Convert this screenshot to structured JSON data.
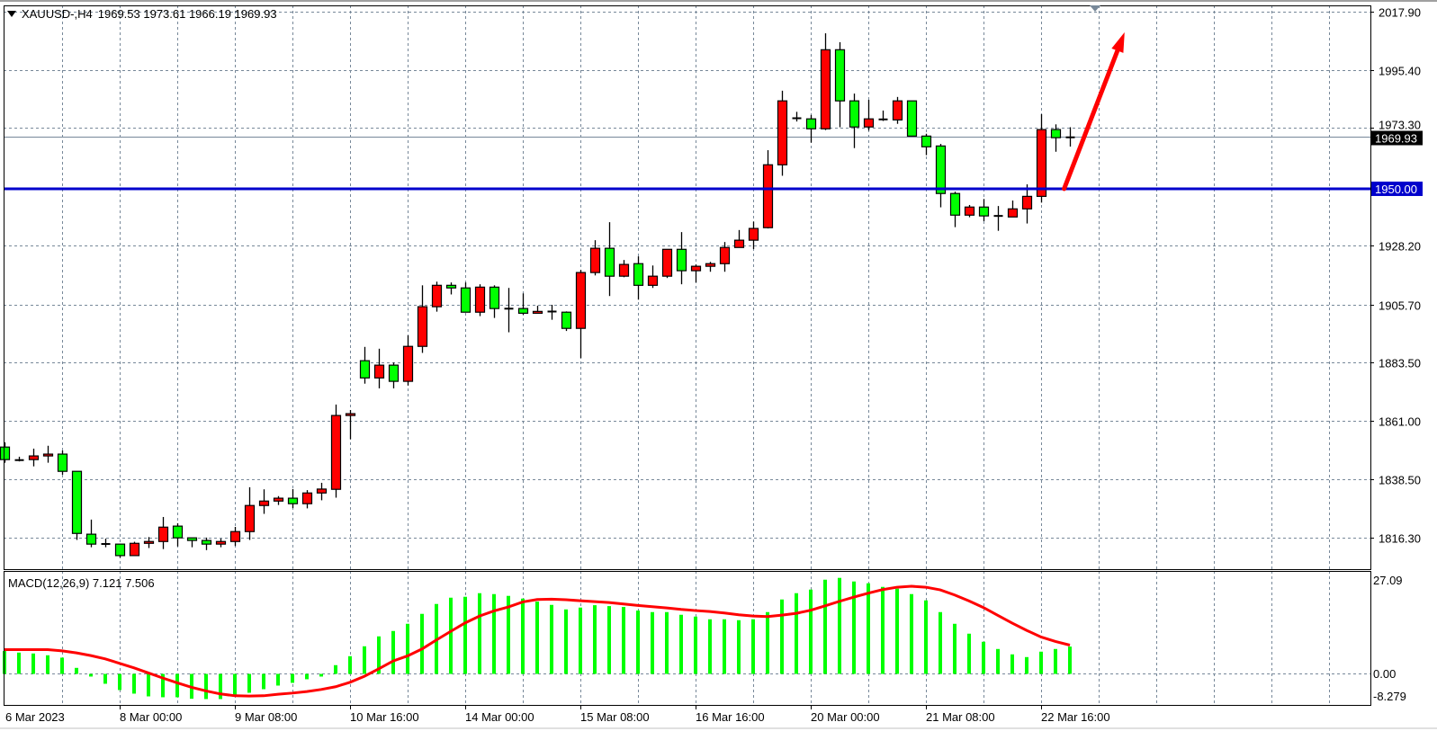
{
  "header": {
    "symbol": "XAUUSD-,H4",
    "ohlc": "1969.53 1973.61 1966.19 1969.93"
  },
  "macd_label": "MACD(12,26,9) 7.121 7.506",
  "colors": {
    "bull": "#ff0000",
    "bear": "#00ff00",
    "outline": "#000000",
    "grid": "#778899",
    "level_line": "#0000cc",
    "price_line": "#778899",
    "histogram": "#00ff00",
    "signal": "#ff0000",
    "arrow": "#ff0000"
  },
  "chart_data": [
    {
      "type": "candlestick",
      "symbol": "XAUUSD-",
      "timeframe": "H4",
      "ylim": [
        1804.2,
        2020.3
      ],
      "grid": true,
      "yticks": [
        "2017.90",
        "1995.40",
        "1973.30",
        "1928.20",
        "1905.70",
        "1883.50",
        "1861.00",
        "1838.50",
        "1816.30"
      ],
      "xticks": [
        {
          "bar": 0,
          "label": "6 Mar 2023"
        },
        {
          "bar": 8,
          "label": "8 Mar 00:00"
        },
        {
          "bar": 16,
          "label": "9 Mar 08:00"
        },
        {
          "bar": 24,
          "label": "10 Mar 16:00"
        },
        {
          "bar": 32,
          "label": "14 Mar 00:00"
        },
        {
          "bar": 40,
          "label": "15 Mar 08:00"
        },
        {
          "bar": 48,
          "label": "16 Mar 16:00"
        },
        {
          "bar": 56,
          "label": "20 Mar 00:00"
        },
        {
          "bar": 64,
          "label": "21 Mar 08:00"
        },
        {
          "bar": 72,
          "label": "22 Mar 16:00"
        }
      ],
      "current_price": {
        "value": 1969.93,
        "label": "1969.93"
      },
      "horizontal_level": {
        "value": 1950.0,
        "label": "1950.00"
      },
      "arrow": {
        "from": {
          "bar": 73.6,
          "price": 1950.0
        },
        "to": {
          "bar": 77.8,
          "price": 2010.0
        },
        "direction": "up"
      },
      "ohlc": [
        [
          1851.0,
          1852.8,
          1845.0,
          1846.2
        ],
        [
          1846.1,
          1847.3,
          1845.5,
          1845.9
        ],
        [
          1846.2,
          1850.4,
          1843.6,
          1847.6
        ],
        [
          1847.6,
          1851.5,
          1845.0,
          1848.3
        ],
        [
          1848.3,
          1849.7,
          1840.4,
          1841.7
        ],
        [
          1841.7,
          1841.7,
          1815.4,
          1817.9
        ],
        [
          1817.6,
          1823.2,
          1812.6,
          1813.8
        ],
        [
          1813.9,
          1815.9,
          1812.6,
          1813.8
        ],
        [
          1813.8,
          1813.8,
          1808.6,
          1809.4
        ],
        [
          1809.4,
          1814.7,
          1809.4,
          1814.1
        ],
        [
          1814.1,
          1816.5,
          1812.3,
          1814.8
        ],
        [
          1814.8,
          1824.2,
          1811.9,
          1820.3
        ],
        [
          1820.7,
          1821.8,
          1812.9,
          1816.2
        ],
        [
          1816.2,
          1816.2,
          1812.6,
          1815.2
        ],
        [
          1815.2,
          1816.3,
          1811.5,
          1813.8
        ],
        [
          1813.8,
          1815.9,
          1812.6,
          1814.8
        ],
        [
          1814.8,
          1820.4,
          1813.1,
          1818.6
        ],
        [
          1818.6,
          1835.6,
          1815.4,
          1828.6
        ],
        [
          1828.6,
          1834.8,
          1825.4,
          1830.3
        ],
        [
          1830.3,
          1832.2,
          1828.8,
          1831.4
        ],
        [
          1831.4,
          1834.9,
          1827.6,
          1829.3
        ],
        [
          1829.3,
          1834.5,
          1827.5,
          1833.4
        ],
        [
          1833.4,
          1837.3,
          1830.6,
          1834.9
        ],
        [
          1834.8,
          1867.3,
          1831.6,
          1863.1
        ],
        [
          1863.1,
          1865.2,
          1854.0,
          1863.8
        ],
        [
          1884.1,
          1889.4,
          1875.3,
          1877.5
        ],
        [
          1877.5,
          1888.7,
          1873.5,
          1882.4
        ],
        [
          1882.4,
          1883.4,
          1873.5,
          1876.2
        ],
        [
          1876.2,
          1893.8,
          1874.6,
          1889.6
        ],
        [
          1889.6,
          1913.0,
          1887.1,
          1904.8
        ],
        [
          1904.8,
          1914.4,
          1902.9,
          1913.0
        ],
        [
          1913.0,
          1914.1,
          1909.5,
          1912.0
        ],
        [
          1912.0,
          1914.1,
          1902.7,
          1902.7
        ],
        [
          1902.7,
          1913.4,
          1901.2,
          1912.3
        ],
        [
          1912.3,
          1913.0,
          1900.5,
          1904.1
        ],
        [
          1904.1,
          1912.0,
          1895.0,
          1904.0
        ],
        [
          1904.1,
          1909.9,
          1901.7,
          1902.3
        ],
        [
          1902.3,
          1905.2,
          1902.3,
          1903.0
        ],
        [
          1903.0,
          1905.5,
          1899.8,
          1902.9
        ],
        [
          1902.7,
          1903.0,
          1895.5,
          1896.5
        ],
        [
          1896.5,
          1918.9,
          1885.1,
          1917.9
        ],
        [
          1917.9,
          1930.3,
          1916.8,
          1927.2
        ],
        [
          1927.2,
          1937.2,
          1908.9,
          1916.5
        ],
        [
          1916.5,
          1922.7,
          1916.1,
          1921.0
        ],
        [
          1921.3,
          1924.1,
          1907.5,
          1913.0
        ],
        [
          1913.0,
          1920.6,
          1912.0,
          1916.5
        ],
        [
          1916.5,
          1926.8,
          1915.8,
          1926.8
        ],
        [
          1926.8,
          1933.4,
          1913.4,
          1918.6
        ],
        [
          1918.6,
          1921.0,
          1914.1,
          1920.3
        ],
        [
          1920.3,
          1922.0,
          1918.2,
          1921.3
        ],
        [
          1921.3,
          1929.6,
          1918.2,
          1927.5
        ],
        [
          1927.5,
          1934.2,
          1927.5,
          1930.3
        ],
        [
          1930.3,
          1937.4,
          1926.9,
          1934.8
        ],
        [
          1935.1,
          1964.8,
          1934.8,
          1959.2
        ],
        [
          1959.2,
          1987.6,
          1955.0,
          1983.7
        ],
        [
          1977.1,
          1979.5,
          1975.8,
          1977.0
        ],
        [
          1976.8,
          1978.3,
          1967.7,
          1973.0
        ],
        [
          1973.0,
          2009.6,
          1972.5,
          2003.3
        ],
        [
          2003.3,
          2006.2,
          1973.6,
          1983.7
        ],
        [
          1983.7,
          1986.5,
          1965.6,
          1973.7
        ],
        [
          1973.7,
          1984.1,
          1972.3,
          1976.8
        ],
        [
          1976.6,
          1980.0,
          1976.0,
          1976.6
        ],
        [
          1976.4,
          1985.2,
          1974.9,
          1983.7
        ],
        [
          1983.7,
          1983.7,
          1970.2,
          1970.2
        ],
        [
          1970.2,
          1971.1,
          1962.9,
          1966.1
        ],
        [
          1966.4,
          1967.2,
          1942.9,
          1948.2
        ],
        [
          1948.2,
          1948.9,
          1935.3,
          1939.9
        ],
        [
          1939.9,
          1943.8,
          1939.1,
          1943.0
        ],
        [
          1943.0,
          1946.1,
          1937.6,
          1939.6
        ],
        [
          1939.6,
          1943.4,
          1933.9,
          1939.6
        ],
        [
          1939.2,
          1945.5,
          1939.2,
          1942.3
        ],
        [
          1942.3,
          1951.7,
          1936.7,
          1947.1
        ],
        [
          1947.1,
          1978.6,
          1944.7,
          1972.7
        ],
        [
          1972.7,
          1974.7,
          1964.2,
          1969.6
        ],
        [
          1969.53,
          1973.61,
          1966.19,
          1969.93
        ]
      ]
    },
    {
      "type": "bar+line",
      "indicator": "MACD(12,26,9)",
      "ylim": [
        -8.279,
        27.09
      ],
      "yticks": [
        "27.09",
        "0.00",
        "-8.279"
      ],
      "histogram": [
        5.94,
        5.54,
        5.3,
        4.83,
        4.2,
        1.5,
        -0.79,
        -2.69,
        -4.35,
        -5.3,
        -6.02,
        -6.25,
        -6.25,
        -6.65,
        -6.73,
        -6.73,
        -5.7,
        -5.07,
        -4.12,
        -3.17,
        -2.45,
        -1.5,
        -0.79,
        2.22,
        4.59,
        7.2,
        9.82,
        11.24,
        13.14,
        15.76,
        18.37,
        20.03,
        20.27,
        21.22,
        20.98,
        20.51,
        19.79,
        19.0,
        18.13,
        16.94,
        17.42,
        18.05,
        17.81,
        17.58,
        16.63,
        16.23,
        16.23,
        15.52,
        15.04,
        14.33,
        14.33,
        14.09,
        14.33,
        16.23,
        19.56,
        21.22,
        22.17,
        24.78,
        25.26,
        24.31,
        23.83,
        22.88,
        22.41,
        20.98,
        19.32,
        16.23,
        13.14,
        10.53,
        8.39,
        6.49,
        5.07,
        4.35,
        5.78,
        6.49,
        7.121
      ],
      "signal": [
        6.33,
        6.33,
        6.33,
        6.33,
        6.0,
        5.46,
        4.75,
        3.88,
        2.69,
        1.5,
        0.16,
        -1.19,
        -2.45,
        -3.64,
        -4.59,
        -5.38,
        -5.86,
        -5.94,
        -5.86,
        -5.46,
        -5.15,
        -4.75,
        -4.2,
        -3.48,
        -2.3,
        -0.71,
        1.27,
        3.33,
        4.67,
        6.49,
        8.87,
        11.16,
        13.38,
        15.2,
        16.55,
        17.58,
        18.92,
        19.56,
        19.64,
        19.48,
        19.24,
        19.0,
        18.76,
        18.37,
        17.97,
        17.66,
        17.34,
        16.94,
        16.63,
        16.39,
        15.99,
        15.52,
        15.2,
        15.04,
        15.44,
        15.91,
        16.71,
        17.89,
        19.08,
        20.19,
        21.22,
        22.17,
        22.8,
        23.04,
        22.8,
        22.09,
        20.74,
        19.16,
        17.42,
        15.36,
        13.3,
        11.4,
        9.66,
        8.47,
        7.506
      ]
    }
  ]
}
